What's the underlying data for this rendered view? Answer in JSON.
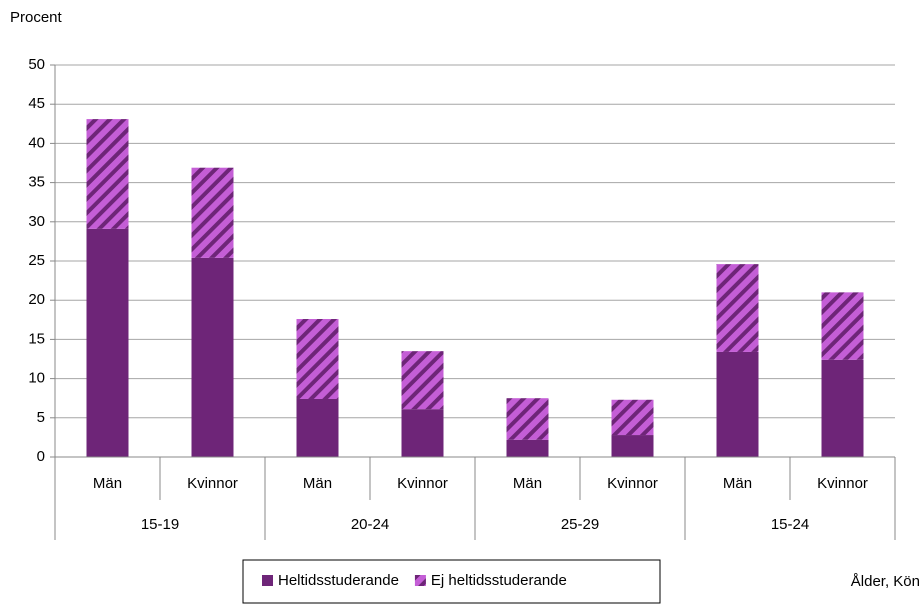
{
  "chart_data": {
    "type": "stacked_bar",
    "y_label": "Procent",
    "x_label": "Ålder, Kön",
    "categories": [
      "Män",
      "Kvinnor",
      "Män",
      "Kvinnor",
      "Män",
      "Kvinnor",
      "Män",
      "Kvinnor"
    ],
    "groups": [
      "15-19",
      "20-24",
      "25-29",
      "15-24"
    ],
    "series": [
      {
        "name": "Heltidsstuderande",
        "color": "#6e2578",
        "values": [
          29.1,
          25.4,
          7.4,
          6.1,
          2.2,
          2.8,
          13.4,
          12.4
        ]
      },
      {
        "name": "Ej heltidsstuderande",
        "color": "#c45ed6",
        "hatch": true,
        "values": [
          14.0,
          11.5,
          10.2,
          7.4,
          5.3,
          4.5,
          11.2,
          8.6
        ]
      }
    ],
    "ylim": [
      0,
      50
    ],
    "yticks": [
      0,
      5,
      10,
      15,
      20,
      25,
      30,
      35,
      40,
      45,
      50
    ],
    "grid": true
  }
}
